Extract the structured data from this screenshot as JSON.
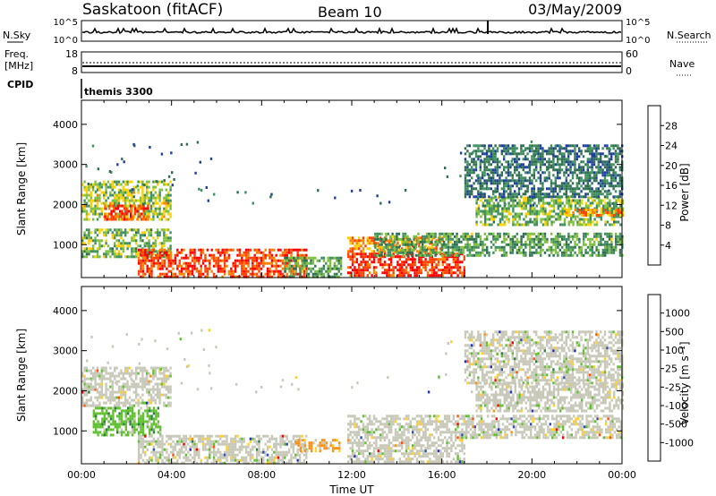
{
  "header": {
    "station": "Saskatoon (fitACF)",
    "beam": "Beam 10",
    "date": "03/May/2009"
  },
  "nsky_panel": {
    "left_label": "N.Sky",
    "right_label": "N.Search",
    "y_ticks_left": [
      "10^5",
      "10^0"
    ],
    "y_ticks_right": [
      "10^5",
      "10^0"
    ]
  },
  "freq_panel": {
    "left_label_1": "Freq.",
    "left_label_2": "[MHz]",
    "right_label": "Nave",
    "y_ticks_left": [
      "18",
      "8"
    ],
    "y_ticks_right": [
      "60",
      "0"
    ]
  },
  "cpid_panel": {
    "label": "CPID",
    "mode": "themis 3300"
  },
  "colors": {
    "power_scale": [
      "#0000ff",
      "#1f3f9f",
      "#2f6f4f",
      "#3f8f5f",
      "#7fbf3f",
      "#ffd000",
      "#ff8000",
      "#ff4000",
      "#ff0000"
    ],
    "velocity_scale": [
      "#2030c0",
      "#3050b0",
      "#2f7f3f",
      "#60c030",
      "#c8c8b8",
      "#ffd020",
      "#ff9010",
      "#ff5010",
      "#ff0000"
    ]
  },
  "chart_data": [
    {
      "type": "heatmap",
      "panel": "power",
      "ylabel": "Slant Range [km]",
      "ylim": [
        180,
        4600
      ],
      "yticks": [
        1000,
        2000,
        3000,
        4000
      ],
      "ytick_labels": [
        "1000",
        "2000",
        "3000",
        "4000"
      ],
      "colorbar": {
        "label": "Power [dB]",
        "tick_labels": [
          "4",
          "8",
          "12",
          "16",
          "20",
          "24",
          "28"
        ],
        "range": [
          0,
          30
        ]
      },
      "regions": [
        {
          "t": [
            0.0,
            4.0
          ],
          "r": [
            1600,
            2600
          ],
          "level": 16
        },
        {
          "t": [
            1.0,
            3.0
          ],
          "r": [
            1600,
            2000
          ],
          "level": 26
        },
        {
          "t": [
            0.0,
            4.0
          ],
          "r": [
            700,
            1400
          ],
          "level": 14
        },
        {
          "t": [
            2.5,
            10.0
          ],
          "r": [
            200,
            900
          ],
          "level": 26
        },
        {
          "t": [
            9.0,
            11.5
          ],
          "r": [
            200,
            700
          ],
          "level": 12
        },
        {
          "t": [
            11.8,
            17.0
          ],
          "r": [
            200,
            800
          ],
          "level": 28
        },
        {
          "t": [
            11.8,
            16.0
          ],
          "r": [
            800,
            1200
          ],
          "level": 22
        },
        {
          "t": [
            13.0,
            24.0
          ],
          "r": [
            700,
            1300
          ],
          "level": 12
        },
        {
          "t": [
            17.5,
            24.0
          ],
          "r": [
            1500,
            2200
          ],
          "level": 14
        },
        {
          "t": [
            21.5,
            24.0
          ],
          "r": [
            1700,
            1900
          ],
          "level": 22
        },
        {
          "t": [
            17.0,
            24.0
          ],
          "r": [
            2200,
            3500
          ],
          "level": 8
        }
      ]
    },
    {
      "type": "heatmap",
      "panel": "velocity",
      "xlabel": "Time UT",
      "xlim": [
        "00:00",
        "24:00"
      ],
      "xtick_labels": [
        "00:00",
        "04:00",
        "08:00",
        "12:00",
        "16:00",
        "20:00",
        "00:00"
      ],
      "ylabel": "Slant Range [km]",
      "ylim": [
        180,
        4600
      ],
      "yticks": [
        1000,
        2000,
        3000,
        4000
      ],
      "ytick_labels": [
        "1000",
        "2000",
        "3000",
        "4000"
      ],
      "colorbar": {
        "label": "Velocity [m s⁻¹]",
        "tick_labels": [
          "1000",
          "500",
          "100",
          "25",
          "-25",
          "-100",
          "-500",
          "-1000"
        ]
      },
      "regions": [
        {
          "t": [
            0.0,
            4.0
          ],
          "r": [
            1600,
            2600
          ],
          "level": 0
        },
        {
          "t": [
            0.5,
            3.5
          ],
          "r": [
            900,
            1600
          ],
          "level": 80
        },
        {
          "t": [
            2.5,
            10.0
          ],
          "r": [
            200,
            900
          ],
          "level": 0
        },
        {
          "t": [
            9.5,
            11.5
          ],
          "r": [
            500,
            800
          ],
          "level": -80
        },
        {
          "t": [
            11.8,
            17.0
          ],
          "r": [
            200,
            800
          ],
          "level": 0
        },
        {
          "t": [
            11.8,
            24.0
          ],
          "r": [
            800,
            1400
          ],
          "level": 0
        },
        {
          "t": [
            17.5,
            24.0
          ],
          "r": [
            1500,
            2200
          ],
          "level": 0
        },
        {
          "t": [
            17.0,
            24.0
          ],
          "r": [
            2200,
            3500
          ],
          "level": 0
        }
      ]
    }
  ]
}
